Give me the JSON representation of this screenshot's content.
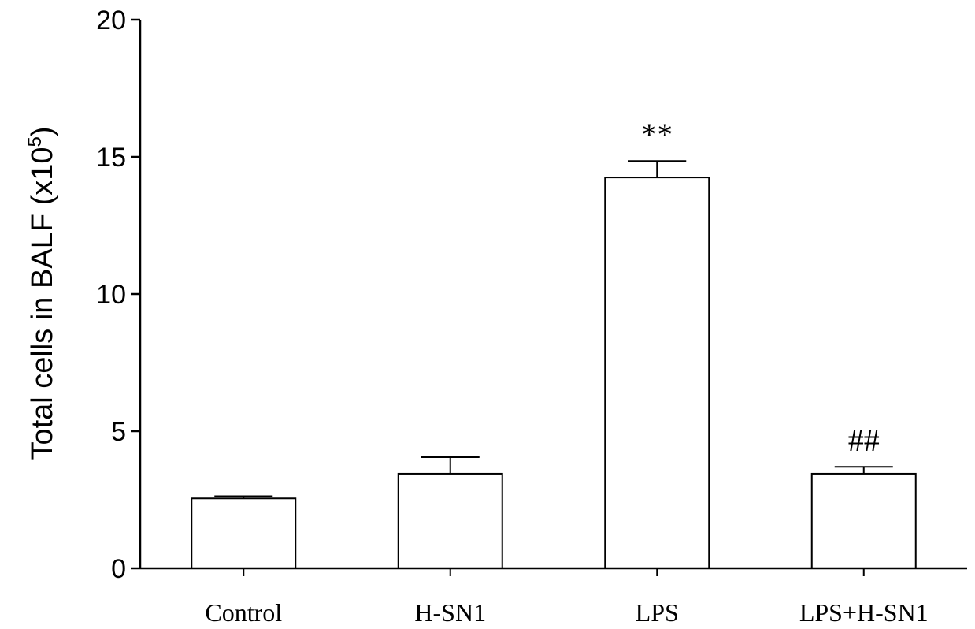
{
  "chart_data": {
    "type": "bar",
    "title": "",
    "xlabel": "",
    "ylabel": "Total cells in BALF (x10",
    "ylabel_superscript": "5",
    "ylabel_suffix": ")",
    "ylim": [
      0,
      20
    ],
    "yticks": [
      0,
      5,
      10,
      15,
      20
    ],
    "grid": false,
    "categories": [
      "Control",
      "H-SN1",
      "LPS",
      "LPS+H-SN1"
    ],
    "values": [
      2.55,
      3.45,
      14.25,
      3.45
    ],
    "errors": [
      0.08,
      0.6,
      0.6,
      0.25
    ],
    "annotations": [
      "",
      "",
      "**",
      "##"
    ],
    "colors": {
      "bar_fill": "#ffffff",
      "bar_stroke": "#000000",
      "axis": "#000000"
    }
  }
}
